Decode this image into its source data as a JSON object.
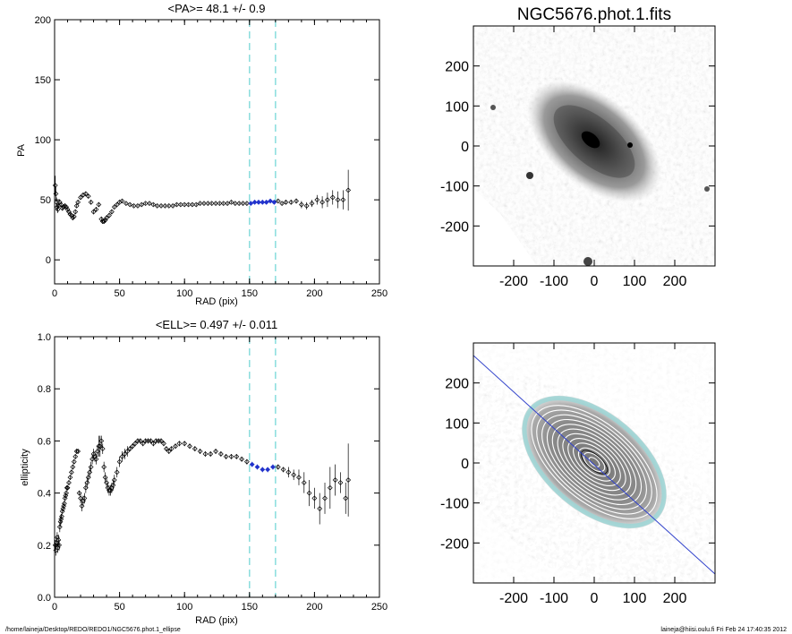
{
  "footer": {
    "path": "/home/laineja/Desktop/REDO/REDO1/NGC5676.phot.1_ellipse",
    "stamp": "laineja@hiisi.oulu.fi  Fri Feb 24 17:40:35 2012"
  },
  "colors": {
    "highlight": "#2233cc",
    "marker_line": "#88dddd",
    "contour": "#ffffff",
    "outer_contour": "#99d6d6",
    "axis_line": "#3344cc"
  },
  "chart_data": [
    {
      "type": "scatter",
      "title": "<PA>=  48.1 +/-   0.9",
      "xlabel": "RAD (pix)",
      "ylabel": "PA",
      "xlim": [
        0,
        250
      ],
      "ylim": [
        -20,
        200
      ],
      "xticks": [
        0,
        50,
        100,
        150,
        200,
        250
      ],
      "yticks": [
        0,
        50,
        100,
        150,
        200
      ],
      "vlines": [
        150,
        170
      ],
      "highlight_range": [
        150,
        170
      ],
      "x": [
        0.5,
        1,
        1.5,
        2,
        2.5,
        3,
        4,
        5,
        6,
        7,
        8,
        9,
        10,
        11,
        12,
        13,
        14,
        15,
        16,
        17,
        18,
        20,
        22,
        24,
        26,
        28,
        30,
        32,
        34,
        36,
        37,
        38,
        39,
        40,
        42,
        44,
        46,
        48,
        50,
        52,
        55,
        58,
        61,
        64,
        67,
        70,
        73,
        76,
        79,
        82,
        85,
        88,
        91,
        94,
        97,
        100,
        103,
        106,
        109,
        112,
        115,
        118,
        121,
        124,
        127,
        130,
        133,
        136,
        139,
        142,
        145,
        148,
        151,
        154,
        157,
        160,
        163,
        166,
        169,
        172,
        175,
        178,
        182,
        186,
        190,
        194,
        198,
        202,
        206,
        210,
        214,
        218,
        222,
        226
      ],
      "y": [
        62,
        55,
        48,
        44,
        42,
        45,
        48,
        46,
        43,
        44,
        45,
        44,
        42,
        40,
        38,
        37,
        35,
        36,
        40,
        45,
        48,
        52,
        54,
        55,
        53,
        48,
        40,
        42,
        46,
        34,
        32,
        32,
        33,
        35,
        37,
        40,
        44,
        46,
        48,
        49,
        47,
        46,
        45,
        45,
        46,
        47,
        47,
        46,
        45,
        45,
        45,
        45,
        45,
        46,
        46,
        46,
        46,
        46,
        46,
        47,
        47,
        47,
        47,
        47,
        47,
        47,
        47,
        48,
        47,
        47,
        47,
        47,
        47,
        48,
        48,
        48,
        48,
        49,
        48,
        49,
        47,
        48,
        48,
        49,
        46,
        45,
        47,
        50,
        48,
        50,
        52,
        50,
        50,
        58
      ],
      "yerr": [
        8,
        6,
        4,
        3,
        3,
        2,
        2,
        2,
        2,
        2,
        2,
        2,
        2,
        2,
        2,
        2,
        2,
        1.5,
        1.5,
        1.5,
        1.5,
        1.5,
        1.5,
        1.5,
        1.5,
        1.5,
        2,
        2,
        2,
        2,
        2,
        2,
        2,
        2,
        2,
        2,
        1,
        1,
        1,
        1,
        1,
        1,
        1,
        1,
        1,
        1,
        1,
        1,
        1,
        1,
        1,
        1,
        1,
        1,
        1,
        1,
        1,
        1,
        1,
        1,
        1,
        1,
        1,
        1,
        1,
        1,
        1,
        1,
        1,
        1,
        1,
        1,
        1,
        1,
        1,
        1,
        1,
        1,
        1,
        1,
        1,
        1.5,
        1.5,
        2,
        3,
        3,
        3,
        4,
        5,
        6,
        6,
        7,
        8,
        17
      ]
    },
    {
      "type": "scatter",
      "title": "<ELL>= 0.497 +/-  0.011",
      "xlabel": "RAD (pix)",
      "ylabel": "ellipticity",
      "xlim": [
        0,
        250
      ],
      "ylim": [
        0,
        1
      ],
      "xticks": [
        0,
        50,
        100,
        150,
        200,
        250
      ],
      "yticks": [
        0.0,
        0.2,
        0.4,
        0.6,
        0.8,
        1.0
      ],
      "vlines": [
        150,
        170
      ],
      "highlight_range": [
        150,
        170
      ],
      "x": [
        0.5,
        1,
        1.5,
        2,
        2.5,
        3,
        3.5,
        4,
        4.5,
        5,
        5.5,
        6,
        6.5,
        7,
        7.5,
        8,
        8.5,
        9,
        9.5,
        10,
        11,
        12,
        13,
        14,
        15,
        16,
        17,
        18,
        19,
        20,
        21,
        22,
        23,
        24,
        25,
        26,
        27,
        28,
        29,
        30,
        31,
        32,
        33,
        34,
        35,
        36,
        37,
        38,
        39,
        40,
        41,
        42,
        43,
        44,
        45,
        46,
        48,
        50,
        52,
        54,
        56,
        58,
        60,
        62,
        64,
        66,
        68,
        70,
        72,
        74,
        76,
        78,
        80,
        82,
        84,
        86,
        88,
        90,
        93,
        96,
        100,
        104,
        108,
        112,
        116,
        120,
        124,
        128,
        132,
        136,
        140,
        144,
        148,
        152,
        156,
        160,
        164,
        168,
        172,
        176,
        180,
        184,
        188,
        192,
        196,
        200,
        204,
        208,
        212,
        216,
        220,
        224,
        226
      ],
      "y": [
        0.2,
        0.18,
        0.21,
        0.23,
        0.19,
        0.22,
        0.2,
        0.27,
        0.29,
        0.3,
        0.31,
        0.33,
        0.34,
        0.35,
        0.36,
        0.38,
        0.39,
        0.4,
        0.42,
        0.42,
        0.44,
        0.46,
        0.48,
        0.5,
        0.52,
        0.54,
        0.56,
        0.56,
        0.4,
        0.38,
        0.35,
        0.37,
        0.38,
        0.42,
        0.44,
        0.46,
        0.48,
        0.5,
        0.53,
        0.55,
        0.54,
        0.53,
        0.56,
        0.58,
        0.58,
        0.6,
        0.57,
        0.5,
        0.46,
        0.44,
        0.42,
        0.41,
        0.41,
        0.42,
        0.43,
        0.45,
        0.48,
        0.52,
        0.54,
        0.55,
        0.56,
        0.57,
        0.58,
        0.59,
        0.6,
        0.6,
        0.59,
        0.6,
        0.6,
        0.6,
        0.59,
        0.6,
        0.6,
        0.6,
        0.59,
        0.57,
        0.56,
        0.57,
        0.58,
        0.59,
        0.59,
        0.58,
        0.57,
        0.56,
        0.55,
        0.55,
        0.56,
        0.55,
        0.54,
        0.54,
        0.54,
        0.53,
        0.52,
        0.51,
        0.5,
        0.49,
        0.49,
        0.5,
        0.5,
        0.49,
        0.48,
        0.47,
        0.46,
        0.44,
        0.4,
        0.38,
        0.34,
        0.38,
        0.42,
        0.45,
        0.44,
        0.38,
        0.45
      ],
      "yerr": [
        0.02,
        0.02,
        0.02,
        0.02,
        0.02,
        0.02,
        0.02,
        0.02,
        0.02,
        0.02,
        0.01,
        0.01,
        0.01,
        0.01,
        0.01,
        0.01,
        0.01,
        0.01,
        0.01,
        0.01,
        0.01,
        0.01,
        0.01,
        0.01,
        0.01,
        0.01,
        0.01,
        0.01,
        0.01,
        0.02,
        0.02,
        0.02,
        0.02,
        0.02,
        0.02,
        0.02,
        0.02,
        0.02,
        0.02,
        0.02,
        0.02,
        0.02,
        0.02,
        0.04,
        0.04,
        0.02,
        0.02,
        0.02,
        0.02,
        0.02,
        0.02,
        0.02,
        0.02,
        0.02,
        0.02,
        0.02,
        0.02,
        0.02,
        0.02,
        0.02,
        0.02,
        0.01,
        0.01,
        0.01,
        0.01,
        0.01,
        0.01,
        0.01,
        0.01,
        0.01,
        0.01,
        0.01,
        0.01,
        0.01,
        0.01,
        0.01,
        0.01,
        0.01,
        0.01,
        0.01,
        0.01,
        0.01,
        0.01,
        0.01,
        0.01,
        0.01,
        0.01,
        0.01,
        0.01,
        0.01,
        0.01,
        0.01,
        0.01,
        0.01,
        0.01,
        0.01,
        0.01,
        0.01,
        0.01,
        0.01,
        0.02,
        0.02,
        0.03,
        0.04,
        0.05,
        0.04,
        0.06,
        0.06,
        0.08,
        0.06,
        0.04,
        0.06,
        0.14
      ]
    },
    {
      "type": "image",
      "title": "NGC5676.phot.1.fits",
      "xlim": [
        -300,
        300
      ],
      "ylim": [
        -300,
        300
      ],
      "xticks": [
        -200,
        -100,
        0,
        100,
        200
      ],
      "yticks": [
        200,
        100,
        0,
        -100,
        -200
      ],
      "tick_labels_x": [
        "-200",
        "-100",
        "0",
        "100",
        "200"
      ],
      "tick_labels_y": [
        "200",
        "100",
        "0",
        "-100",
        "-200"
      ]
    },
    {
      "type": "image",
      "title": "",
      "xlim": [
        -300,
        300
      ],
      "ylim": [
        -300,
        300
      ],
      "xticks": [
        -200,
        -100,
        0,
        100,
        200
      ],
      "yticks": [
        200,
        100,
        0,
        -100,
        -200
      ],
      "tick_labels_x": [
        "-200",
        "-100",
        "0",
        "100",
        "200"
      ],
      "tick_labels_y": [
        "200",
        "100",
        "0",
        "-100",
        "-200"
      ],
      "major_axis_pa_deg": 48.1
    }
  ]
}
